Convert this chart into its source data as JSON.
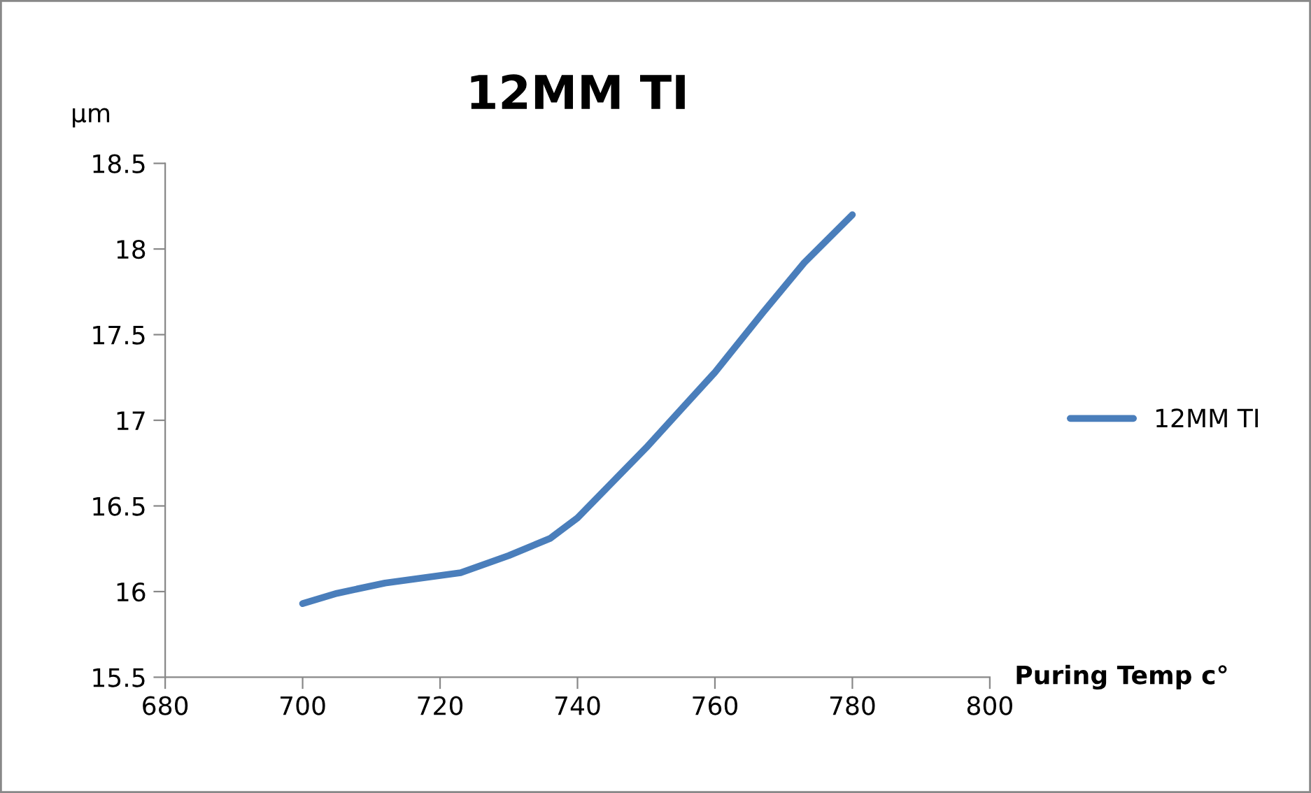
{
  "chart_data": {
    "type": "line",
    "title": "12MM TI",
    "xlabel": "Puring Temp c°",
    "ylabel": "µm",
    "x": [
      700,
      705,
      712,
      723,
      730,
      736,
      740,
      750,
      755,
      760,
      767,
      773,
      780
    ],
    "series": [
      {
        "name": "12MM TI",
        "color": "#4a7ebb",
        "values": [
          15.93,
          15.99,
          16.05,
          16.11,
          16.21,
          16.31,
          16.43,
          16.84,
          17.06,
          17.28,
          17.63,
          17.92,
          18.2
        ]
      }
    ],
    "xlim": [
      680,
      800
    ],
    "xticks": [
      680,
      700,
      720,
      740,
      760,
      780,
      800
    ],
    "ylim": [
      15.5,
      18.5
    ],
    "yticks": [
      15.5,
      16,
      16.5,
      17,
      17.5,
      18,
      18.5
    ],
    "grid": false,
    "legend": "right",
    "marker": "none",
    "line_style": "solid"
  }
}
